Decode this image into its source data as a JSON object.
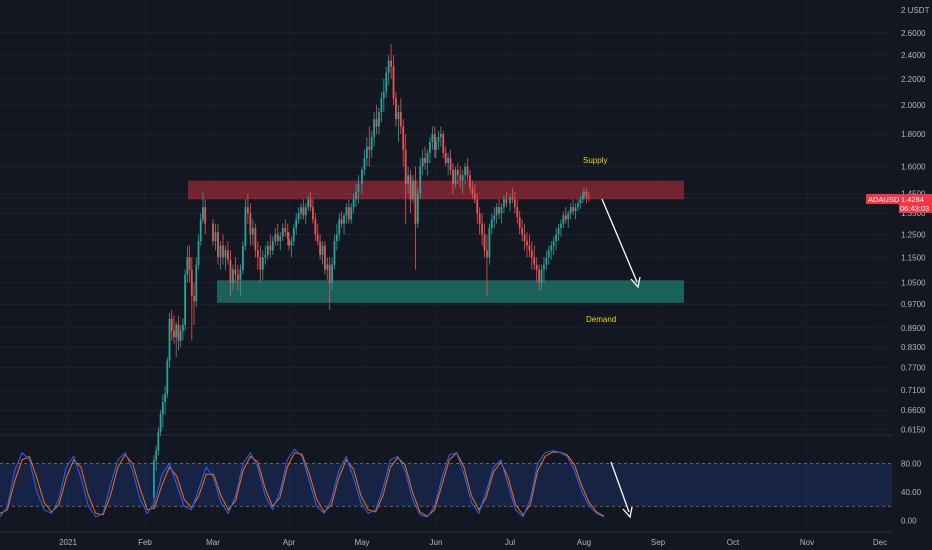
{
  "chart_data": {
    "type": "candlestick",
    "currency_label": "2 USDT",
    "symbol": "ADAUSDT",
    "last_price": "1.4264",
    "countdown": "06:43:03",
    "price_axis": {
      "scale": "log",
      "range": [
        0.6,
        2.85
      ],
      "ticks": [
        "2.6000",
        "2.4000",
        "2.2000",
        "2.0000",
        "1.8000",
        "1.6000",
        "1.4500",
        "1.3500",
        "1.2500",
        "1.1500",
        "1.0500",
        "0.9700",
        "0.8900",
        "0.8300",
        "0.7700",
        "0.7100",
        "0.6600",
        "0.6150"
      ]
    },
    "time_axis": {
      "labels": [
        "2021",
        "Feb",
        "Mar",
        "Apr",
        "May",
        "Jun",
        "Jul",
        "Aug",
        "Sep",
        "Oct",
        "Nov",
        "Dec"
      ]
    },
    "zones": [
      {
        "name": "Supply",
        "low": 1.42,
        "high": 1.52,
        "color": "#f23645"
      },
      {
        "name": "Demand",
        "low": 0.975,
        "high": 1.058,
        "color": "#22ab94"
      }
    ],
    "colors": {
      "up": "#26a69a",
      "down": "#ef5350",
      "k_line": "#2962ff",
      "d_line": "#ff6d00"
    },
    "candles": [
      [
        "Feb 05",
        0.48,
        0.56,
        0.46,
        0.55
      ],
      [
        "Feb 06",
        0.55,
        0.58,
        0.53,
        0.57
      ],
      [
        "Feb 07",
        0.57,
        0.62,
        0.56,
        0.61
      ],
      [
        "Feb 08",
        0.61,
        0.66,
        0.6,
        0.65
      ],
      [
        "Feb 09",
        0.65,
        0.7,
        0.62,
        0.68
      ],
      [
        "Feb 10",
        0.68,
        0.72,
        0.65,
        0.7
      ],
      [
        "Feb 11",
        0.7,
        0.8,
        0.69,
        0.79
      ],
      [
        "Feb 12",
        0.79,
        0.94,
        0.77,
        0.92
      ],
      [
        "Feb 13",
        0.92,
        0.95,
        0.85,
        0.88
      ],
      [
        "Feb 14",
        0.88,
        0.93,
        0.84,
        0.86
      ],
      [
        "Feb 15",
        0.86,
        0.91,
        0.8,
        0.9
      ],
      [
        "Feb 16",
        0.9,
        0.93,
        0.82,
        0.85
      ],
      [
        "Feb 17",
        0.85,
        0.9,
        0.83,
        0.88
      ],
      [
        "Feb 18",
        0.88,
        0.92,
        0.85,
        0.9
      ],
      [
        "Feb 19",
        0.9,
        1.1,
        0.88,
        1.08
      ],
      [
        "Feb 20",
        1.08,
        1.2,
        1.05,
        1.15
      ],
      [
        "Feb 21",
        1.15,
        1.2,
        1.05,
        1.1
      ],
      [
        "Feb 22",
        1.1,
        1.15,
        0.85,
        1.0
      ],
      [
        "Feb 23",
        1.0,
        1.05,
        0.9,
        0.98
      ],
      [
        "Feb 24",
        0.98,
        1.15,
        0.96,
        1.12
      ],
      [
        "Feb 25",
        1.12,
        1.25,
        1.1,
        1.22
      ],
      [
        "Feb 26",
        1.22,
        1.35,
        1.2,
        1.32
      ],
      [
        "Feb 27",
        1.32,
        1.46,
        1.3,
        1.38
      ],
      [
        "Feb 28",
        1.38,
        1.42,
        1.25,
        1.3
      ],
      [
        "Mar 01",
        1.3,
        1.32,
        1.2,
        1.22
      ],
      [
        "Mar 02",
        1.22,
        1.3,
        1.18,
        1.26
      ],
      [
        "Mar 03",
        1.26,
        1.3,
        1.12,
        1.15
      ],
      [
        "Mar 04",
        1.15,
        1.22,
        1.1,
        1.2
      ],
      [
        "Mar 05",
        1.2,
        1.25,
        1.12,
        1.15
      ],
      [
        "Mar 06",
        1.15,
        1.2,
        1.1,
        1.18
      ],
      [
        "Mar 07",
        1.18,
        1.22,
        1.12,
        1.14
      ],
      [
        "Mar 08",
        1.14,
        1.18,
        1.0,
        1.05
      ],
      [
        "Mar 09",
        1.05,
        1.12,
        1.02,
        1.1
      ],
      [
        "Mar 10",
        1.1,
        1.15,
        1.05,
        1.08
      ],
      [
        "Mar 11",
        1.08,
        1.12,
        1.02,
        1.06
      ],
      [
        "Mar 12",
        1.06,
        1.12,
        1.0,
        1.1
      ],
      [
        "Mar 13",
        1.1,
        1.22,
        1.08,
        1.2
      ],
      [
        "Mar 14",
        1.2,
        1.42,
        1.18,
        1.38
      ],
      [
        "Mar 15",
        1.38,
        1.45,
        1.3,
        1.35
      ],
      [
        "Mar 16",
        1.35,
        1.4,
        1.2,
        1.25
      ],
      [
        "Mar 17",
        1.25,
        1.32,
        1.2,
        1.28
      ],
      [
        "Mar 18",
        1.28,
        1.3,
        1.15,
        1.18
      ],
      [
        "Mar 19",
        1.18,
        1.22,
        1.1,
        1.15
      ],
      [
        "Mar 20",
        1.15,
        1.2,
        1.05,
        1.1
      ],
      [
        "Mar 21",
        1.1,
        1.18,
        1.06,
        1.15
      ],
      [
        "Mar 22",
        1.15,
        1.2,
        1.12,
        1.16
      ],
      [
        "Mar 23",
        1.16,
        1.22,
        1.14,
        1.2
      ],
      [
        "Mar 24",
        1.2,
        1.25,
        1.15,
        1.18
      ],
      [
        "Mar 25",
        1.18,
        1.24,
        1.16,
        1.22
      ],
      [
        "Mar 26",
        1.22,
        1.28,
        1.2,
        1.25
      ],
      [
        "Mar 27",
        1.25,
        1.3,
        1.2,
        1.22
      ],
      [
        "Mar 28",
        1.22,
        1.26,
        1.18,
        1.24
      ],
      [
        "Mar 29",
        1.24,
        1.3,
        1.22,
        1.28
      ],
      [
        "Mar 30",
        1.28,
        1.32,
        1.24,
        1.26
      ],
      [
        "Mar 31",
        1.26,
        1.3,
        1.2,
        1.23
      ],
      [
        "Apr 01",
        1.23,
        1.26,
        1.18,
        1.2
      ],
      [
        "Apr 02",
        1.2,
        1.24,
        1.15,
        1.22
      ],
      [
        "Apr 03",
        1.22,
        1.3,
        1.2,
        1.28
      ],
      [
        "Apr 04",
        1.28,
        1.35,
        1.25,
        1.32
      ],
      [
        "Apr 05",
        1.32,
        1.38,
        1.3,
        1.35
      ],
      [
        "Apr 06",
        1.35,
        1.4,
        1.32,
        1.38
      ],
      [
        "Apr 07",
        1.38,
        1.42,
        1.32,
        1.34
      ],
      [
        "Apr 08",
        1.34,
        1.4,
        1.3,
        1.38
      ],
      [
        "Apr 09",
        1.38,
        1.44,
        1.36,
        1.42
      ],
      [
        "Apr 10",
        1.42,
        1.46,
        1.36,
        1.38
      ],
      [
        "Apr 11",
        1.38,
        1.42,
        1.3,
        1.32
      ],
      [
        "Apr 12",
        1.32,
        1.35,
        1.22,
        1.25
      ],
      [
        "Apr 13",
        1.25,
        1.3,
        1.2,
        1.22
      ],
      [
        "Apr 14",
        1.22,
        1.25,
        1.14,
        1.16
      ],
      [
        "Apr 15",
        1.16,
        1.22,
        1.12,
        1.2
      ],
      [
        "Apr 16",
        1.2,
        1.22,
        1.08,
        1.1
      ],
      [
        "Apr 17",
        1.1,
        1.15,
        1.06,
        1.12
      ],
      [
        "Apr 18",
        1.12,
        1.15,
        0.95,
        1.05
      ],
      [
        "Apr 19",
        1.05,
        1.15,
        1.02,
        1.12
      ],
      [
        "Apr 20",
        1.12,
        1.25,
        1.1,
        1.22
      ],
      [
        "Apr 21",
        1.22,
        1.3,
        1.18,
        1.25
      ],
      [
        "Apr 22",
        1.25,
        1.35,
        1.22,
        1.32
      ],
      [
        "Apr 23",
        1.32,
        1.36,
        1.28,
        1.3
      ],
      [
        "Apr 24",
        1.3,
        1.35,
        1.25,
        1.34
      ],
      [
        "Apr 25",
        1.34,
        1.4,
        1.3,
        1.38
      ],
      [
        "Apr 26",
        1.38,
        1.42,
        1.3,
        1.32
      ],
      [
        "Apr 27",
        1.32,
        1.4,
        1.3,
        1.38
      ],
      [
        "Apr 28",
        1.38,
        1.45,
        1.35,
        1.42
      ],
      [
        "Apr 29",
        1.42,
        1.5,
        1.38,
        1.46
      ],
      [
        "Apr 30",
        1.46,
        1.55,
        1.4,
        1.5
      ],
      [
        "May 01",
        1.5,
        1.6,
        1.45,
        1.58
      ],
      [
        "May 02",
        1.58,
        1.7,
        1.55,
        1.65
      ],
      [
        "May 03",
        1.65,
        1.78,
        1.6,
        1.72
      ],
      [
        "May 04",
        1.72,
        1.85,
        1.6,
        1.7
      ],
      [
        "May 05",
        1.7,
        1.82,
        1.65,
        1.78
      ],
      [
        "May 06",
        1.78,
        1.95,
        1.72,
        1.9
      ],
      [
        "May 07",
        1.9,
        2.0,
        1.8,
        1.85
      ],
      [
        "May 08",
        1.85,
        1.98,
        1.8,
        1.95
      ],
      [
        "May 09",
        1.95,
        2.1,
        1.88,
        2.05
      ],
      [
        "May 10",
        2.05,
        2.2,
        1.95,
        2.1
      ],
      [
        "May 11",
        2.1,
        2.3,
        2.05,
        2.25
      ],
      [
        "May 12",
        2.25,
        2.4,
        2.15,
        2.35
      ],
      [
        "May 13",
        2.35,
        2.5,
        2.2,
        2.3
      ],
      [
        "May 14",
        2.3,
        2.4,
        2.0,
        2.05
      ],
      [
        "May 15",
        2.05,
        2.1,
        1.85,
        1.9
      ],
      [
        "May 16",
        1.9,
        2.0,
        1.75,
        1.95
      ],
      [
        "May 17",
        1.95,
        2.05,
        1.8,
        1.85
      ],
      [
        "May 18",
        1.85,
        1.9,
        1.6,
        1.7
      ],
      [
        "May 19",
        1.7,
        1.8,
        1.3,
        1.5
      ],
      [
        "May 20",
        1.5,
        1.6,
        1.45,
        1.55
      ],
      [
        "May 21",
        1.55,
        1.58,
        1.35,
        1.42
      ],
      [
        "May 22",
        1.42,
        1.55,
        1.4,
        1.52
      ],
      [
        "May 23",
        1.52,
        1.6,
        1.1,
        1.3
      ],
      [
        "May 24",
        1.3,
        1.48,
        1.28,
        1.45
      ],
      [
        "May 25",
        1.45,
        1.65,
        1.42,
        1.6
      ],
      [
        "May 26",
        1.6,
        1.7,
        1.55,
        1.65
      ],
      [
        "May 27",
        1.65,
        1.72,
        1.58,
        1.62
      ],
      [
        "May 28",
        1.62,
        1.7,
        1.55,
        1.68
      ],
      [
        "May 29",
        1.68,
        1.78,
        1.62,
        1.75
      ],
      [
        "May 30",
        1.75,
        1.85,
        1.7,
        1.8
      ],
      [
        "May 31",
        1.8,
        1.85,
        1.65,
        1.7
      ],
      [
        "Jun 01",
        1.7,
        1.78,
        1.65,
        1.75
      ],
      [
        "Jun 02",
        1.75,
        1.82,
        1.7,
        1.78
      ],
      [
        "Jun 03",
        1.78,
        1.85,
        1.72,
        1.8
      ],
      [
        "Jun 04",
        1.8,
        1.82,
        1.65,
        1.68
      ],
      [
        "Jun 05",
        1.68,
        1.72,
        1.6,
        1.62
      ],
      [
        "Jun 06",
        1.62,
        1.68,
        1.55,
        1.65
      ],
      [
        "Jun 07",
        1.65,
        1.7,
        1.55,
        1.58
      ],
      [
        "Jun 08",
        1.58,
        1.62,
        1.45,
        1.5
      ],
      [
        "Jun 09",
        1.5,
        1.6,
        1.48,
        1.58
      ],
      [
        "Jun 10",
        1.58,
        1.62,
        1.5,
        1.55
      ],
      [
        "Jun 11",
        1.55,
        1.6,
        1.48,
        1.52
      ],
      [
        "Jun 12",
        1.52,
        1.58,
        1.45,
        1.55
      ],
      [
        "Jun 13",
        1.55,
        1.62,
        1.5,
        1.6
      ],
      [
        "Jun 14",
        1.6,
        1.65,
        1.52,
        1.55
      ],
      [
        "Jun 15",
        1.55,
        1.58,
        1.46,
        1.48
      ],
      [
        "Jun 16",
        1.48,
        1.52,
        1.42,
        1.45
      ],
      [
        "Jun 17",
        1.45,
        1.5,
        1.4,
        1.42
      ],
      [
        "Jun 18",
        1.42,
        1.45,
        1.3,
        1.35
      ],
      [
        "Jun 19",
        1.35,
        1.38,
        1.25,
        1.3
      ],
      [
        "Jun 20",
        1.3,
        1.35,
        1.2,
        1.25
      ],
      [
        "Jun 21",
        1.25,
        1.3,
        1.15,
        1.18
      ],
      [
        "Jun 22",
        1.18,
        1.25,
        1.0,
        1.15
      ],
      [
        "Jun 23",
        1.15,
        1.3,
        1.12,
        1.28
      ],
      [
        "Jun 24",
        1.28,
        1.35,
        1.25,
        1.32
      ],
      [
        "Jun 25",
        1.32,
        1.38,
        1.28,
        1.34
      ],
      [
        "Jun 26",
        1.34,
        1.4,
        1.3,
        1.38
      ],
      [
        "Jun 27",
        1.38,
        1.42,
        1.32,
        1.35
      ],
      [
        "Jun 28",
        1.35,
        1.4,
        1.3,
        1.38
      ],
      [
        "Jun 29",
        1.38,
        1.44,
        1.35,
        1.42
      ],
      [
        "Jun 30",
        1.42,
        1.46,
        1.38,
        1.4
      ],
      [
        "Jul 01",
        1.4,
        1.45,
        1.36,
        1.43
      ],
      [
        "Jul 02",
        1.43,
        1.48,
        1.4,
        1.42
      ],
      [
        "Jul 03",
        1.42,
        1.46,
        1.35,
        1.38
      ],
      [
        "Jul 04",
        1.38,
        1.42,
        1.3,
        1.33
      ],
      [
        "Jul 05",
        1.33,
        1.36,
        1.25,
        1.28
      ],
      [
        "Jul 06",
        1.28,
        1.32,
        1.22,
        1.25
      ],
      [
        "Jul 07",
        1.25,
        1.3,
        1.18,
        1.22
      ],
      [
        "Jul 08",
        1.22,
        1.26,
        1.15,
        1.2
      ],
      [
        "Jul 09",
        1.2,
        1.25,
        1.15,
        1.18
      ],
      [
        "Jul 10",
        1.18,
        1.22,
        1.1,
        1.15
      ],
      [
        "Jul 11",
        1.15,
        1.2,
        1.1,
        1.12
      ],
      [
        "Jul 12",
        1.12,
        1.15,
        1.05,
        1.1
      ],
      [
        "Jul 13",
        1.1,
        1.12,
        1.02,
        1.05
      ],
      [
        "Jul 14",
        1.05,
        1.12,
        1.02,
        1.1
      ],
      [
        "Jul 15",
        1.1,
        1.15,
        1.05,
        1.12
      ],
      [
        "Jul 16",
        1.12,
        1.18,
        1.1,
        1.15
      ],
      [
        "Jul 17",
        1.15,
        1.2,
        1.12,
        1.18
      ],
      [
        "Jul 18",
        1.18,
        1.22,
        1.14,
        1.2
      ],
      [
        "Jul 19",
        1.2,
        1.24,
        1.16,
        1.22
      ],
      [
        "Jul 20",
        1.22,
        1.28,
        1.18,
        1.25
      ],
      [
        "Jul 21",
        1.25,
        1.3,
        1.22,
        1.28
      ],
      [
        "Jul 22",
        1.28,
        1.32,
        1.24,
        1.3
      ],
      [
        "Jul 23",
        1.3,
        1.36,
        1.28,
        1.34
      ],
      [
        "Jul 24",
        1.34,
        1.38,
        1.3,
        1.32
      ],
      [
        "Jul 25",
        1.32,
        1.36,
        1.28,
        1.35
      ],
      [
        "Jul 26",
        1.35,
        1.4,
        1.32,
        1.38
      ],
      [
        "Jul 27",
        1.38,
        1.42,
        1.34,
        1.36
      ],
      [
        "Jul 28",
        1.36,
        1.4,
        1.32,
        1.38
      ],
      [
        "Jul 29",
        1.38,
        1.42,
        1.36,
        1.4
      ],
      [
        "Jul 30",
        1.4,
        1.44,
        1.37,
        1.42
      ],
      [
        "Jul 31",
        1.42,
        1.46,
        1.4,
        1.44
      ],
      [
        "Aug 01",
        1.44,
        1.48,
        1.42,
        1.46
      ],
      [
        "Aug 02",
        1.46,
        1.48,
        1.4,
        1.43
      ],
      [
        "Aug 03",
        1.43,
        1.46,
        1.41,
        1.4264
      ]
    ],
    "stoch_rsi": {
      "ticks": [
        "80.00",
        "40.00",
        "0.00"
      ],
      "upper_band": 80,
      "lower_band": 20,
      "k": [
        5,
        20,
        70,
        95,
        85,
        40,
        15,
        10,
        30,
        75,
        90,
        60,
        20,
        5,
        10,
        50,
        85,
        95,
        70,
        30,
        10,
        25,
        65,
        80,
        50,
        20,
        15,
        45,
        75,
        60,
        25,
        10,
        35,
        80,
        95,
        75,
        35,
        15,
        40,
        85,
        100,
        90,
        55,
        20,
        10,
        30,
        70,
        90,
        60,
        25,
        10,
        15,
        45,
        85,
        90,
        70,
        30,
        8,
        5,
        20,
        60,
        92,
        95,
        65,
        25,
        10,
        40,
        75,
        85,
        50,
        15,
        5,
        30,
        80,
        95,
        98,
        96,
        90,
        70,
        40,
        20,
        10,
        5
      ],
      "d": [
        10,
        15,
        55,
        85,
        90,
        60,
        25,
        12,
        22,
        60,
        85,
        75,
        35,
        10,
        8,
        35,
        75,
        92,
        80,
        45,
        15,
        18,
        50,
        75,
        62,
        30,
        18,
        35,
        65,
        65,
        35,
        15,
        28,
        70,
        90,
        82,
        45,
        20,
        32,
        75,
        95,
        93,
        65,
        30,
        12,
        22,
        60,
        85,
        72,
        35,
        15,
        12,
        35,
        75,
        88,
        78,
        40,
        12,
        6,
        15,
        50,
        85,
        95,
        75,
        35,
        15,
        32,
        68,
        82,
        60,
        22,
        8,
        22,
        70,
        90,
        96,
        96,
        92,
        78,
        48,
        25,
        12,
        6
      ]
    }
  }
}
